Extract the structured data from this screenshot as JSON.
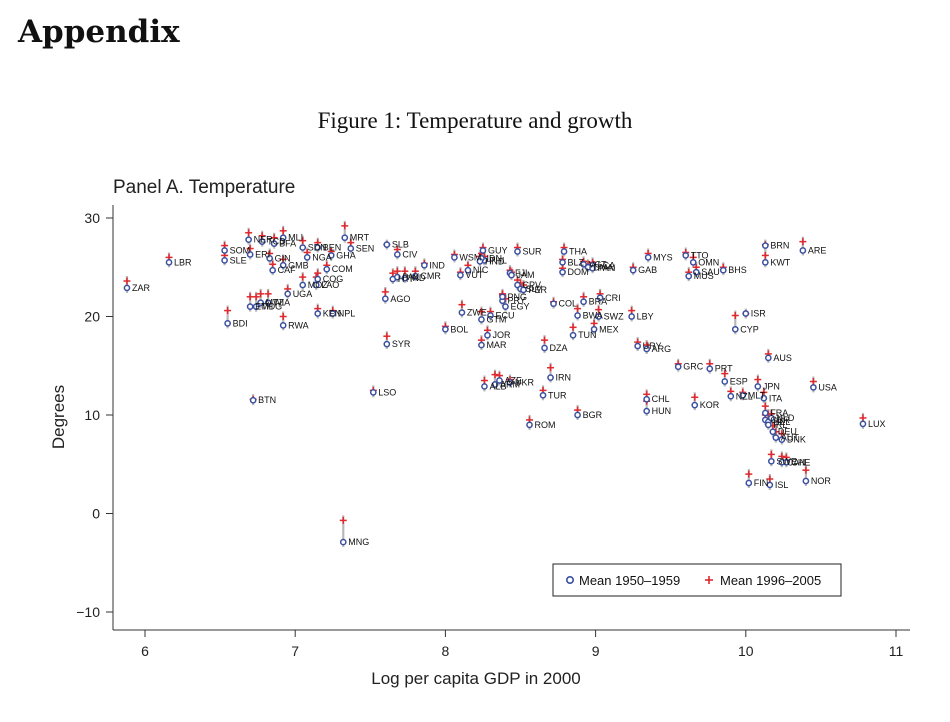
{
  "heading": "Appendix",
  "caption": "Figure 1: Temperature and growth",
  "chart_data": {
    "type": "scatter",
    "title": "Panel A. Temperature",
    "xlabel": "Log per capita GDP in 2000",
    "ylabel": "Degrees",
    "xlim": [
      5.8,
      11.1
    ],
    "ylim": [
      -11.5,
      32
    ],
    "xticks": [
      6,
      7,
      8,
      9,
      10,
      11
    ],
    "yticks": [
      -10,
      0,
      10,
      20,
      30
    ],
    "ytick_labels": [
      "−10",
      "0",
      "10",
      "20",
      "30"
    ],
    "legend": [
      "Mean 1950–1959",
      "Mean 1996–2005"
    ],
    "legend_position": "bottom-right",
    "colors": {
      "early": "#3a4fa0",
      "late": "#e0282d",
      "range": "#b8b8b8"
    },
    "points": [
      {
        "label": "ZAR",
        "x": 5.88,
        "y1950": 22.9,
        "y2000": 23.6
      },
      {
        "label": "LBR",
        "x": 6.16,
        "y1950": 25.5,
        "y2000": 26.0
      },
      {
        "label": "SOM",
        "x": 6.53,
        "y1950": 26.7,
        "y2000": 27.2
      },
      {
        "label": "SLE",
        "x": 6.53,
        "y1950": 25.7,
        "y2000": 26.2
      },
      {
        "label": "BDI",
        "x": 6.55,
        "y1950": 19.3,
        "y2000": 20.6
      },
      {
        "label": "NER",
        "x": 6.69,
        "y1950": 27.8,
        "y2000": 28.5
      },
      {
        "label": "TCD",
        "x": 6.78,
        "y1950": 27.6,
        "y2000": 28.2
      },
      {
        "label": "BFA",
        "x": 6.86,
        "y1950": 27.4,
        "y2000": 28.0
      },
      {
        "label": "ETH",
        "x": 6.7,
        "y1950": 21.0,
        "y2000": 22.0
      },
      {
        "label": "ERI",
        "x": 6.7,
        "y1950": 26.3,
        "y2000": 26.9
      },
      {
        "label": "BTN",
        "x": 6.72,
        "y1950": 11.5,
        "y2000": 11.6
      },
      {
        "label": "MDG",
        "x": 6.74,
        "y1950": 21.0,
        "y2000": 22.0
      },
      {
        "label": "MWI",
        "x": 6.77,
        "y1950": 21.4,
        "y2000": 22.3
      },
      {
        "label": "TZA",
        "x": 6.82,
        "y1950": 21.4,
        "y2000": 22.3
      },
      {
        "label": "GIN",
        "x": 6.83,
        "y1950": 25.9,
        "y2000": 26.4
      },
      {
        "label": "MLI",
        "x": 6.92,
        "y1950": 28.0,
        "y2000": 28.7
      },
      {
        "label": "GMB",
        "x": 6.92,
        "y1950": 25.2,
        "y2000": 25.8
      },
      {
        "label": "CAF",
        "x": 6.85,
        "y1950": 24.7,
        "y2000": 25.3
      },
      {
        "label": "RWA",
        "x": 6.92,
        "y1950": 19.1,
        "y2000": 20.0
      },
      {
        "label": "UGA",
        "x": 6.95,
        "y1950": 22.3,
        "y2000": 22.8
      },
      {
        "label": "SDN",
        "x": 7.05,
        "y1950": 27.0,
        "y2000": 27.7
      },
      {
        "label": "NGA",
        "x": 7.08,
        "y1950": 26.0,
        "y2000": 26.5
      },
      {
        "label": "BEN",
        "x": 7.15,
        "y1950": 27.0,
        "y2000": 27.5
      },
      {
        "label": "MOZ",
        "x": 7.05,
        "y1950": 23.2,
        "y2000": 24.0
      },
      {
        "label": "COG",
        "x": 7.15,
        "y1950": 23.8,
        "y2000": 24.4
      },
      {
        "label": "LAO",
        "x": 7.14,
        "y1950": 23.2,
        "y2000": 24.0
      },
      {
        "label": "KEN",
        "x": 7.15,
        "y1950": 20.3,
        "y2000": 20.8
      },
      {
        "label": "NPL",
        "x": 7.25,
        "y1950": 20.3,
        "y2000": 20.6
      },
      {
        "label": "COM",
        "x": 7.21,
        "y1950": 24.8,
        "y2000": 25.2
      },
      {
        "label": "GHA",
        "x": 7.24,
        "y1950": 26.2,
        "y2000": 26.6
      },
      {
        "label": "MRT",
        "x": 7.33,
        "y1950": 28.0,
        "y2000": 29.2
      },
      {
        "label": "SEN",
        "x": 7.37,
        "y1950": 26.9,
        "y2000": 27.5
      },
      {
        "label": "MNG",
        "x": 7.32,
        "y1950": -2.9,
        "y2000": -0.7
      },
      {
        "label": "LSO",
        "x": 7.52,
        "y1950": 12.3,
        "y2000": 12.5
      },
      {
        "label": "SLB",
        "x": 7.61,
        "y1950": 27.3,
        "y2000": 27.3
      },
      {
        "label": "AGO",
        "x": 7.6,
        "y1950": 21.8,
        "y2000": 22.5
      },
      {
        "label": "SYR",
        "x": 7.61,
        "y1950": 17.2,
        "y2000": 18.0
      },
      {
        "label": "CIV",
        "x": 7.68,
        "y1950": 26.3,
        "y2000": 26.8
      },
      {
        "label": "HTI",
        "x": 7.65,
        "y1950": 23.8,
        "y2000": 24.4
      },
      {
        "label": "PAK",
        "x": 7.68,
        "y1950": 24.0,
        "y2000": 24.6
      },
      {
        "label": "IND",
        "x": 7.73,
        "y1950": 23.9,
        "y2000": 24.6
      },
      {
        "label": "CMR",
        "x": 7.8,
        "y1950": 24.1,
        "y2000": 24.6
      },
      {
        "label": "IND",
        "x": 7.86,
        "y1950": 25.2,
        "y2000": 25.4
      },
      {
        "label": "BOL",
        "x": 8.0,
        "y1950": 18.7,
        "y2000": 19.0
      },
      {
        "label": "WSM",
        "x": 8.06,
        "y1950": 26.0,
        "y2000": 26.3
      },
      {
        "label": "VUT",
        "x": 8.1,
        "y1950": 24.2,
        "y2000": 24.5
      },
      {
        "label": "NIC",
        "x": 8.15,
        "y1950": 24.7,
        "y2000": 25.2
      },
      {
        "label": "ZWE",
        "x": 8.11,
        "y1950": 20.4,
        "y2000": 21.2
      },
      {
        "label": "GUY",
        "x": 8.25,
        "y1950": 26.7,
        "y2000": 27.0
      },
      {
        "label": "PHL",
        "x": 8.26,
        "y1950": 25.7,
        "y2000": 26.1
      },
      {
        "label": "IDN",
        "x": 8.24,
        "y1950": 25.9,
        "y2000": 26.4
      },
      {
        "label": "HND",
        "x": 8.23,
        "y1950": 25.6,
        "y2000": 26.1
      },
      {
        "label": "GTM",
        "x": 8.24,
        "y1950": 19.7,
        "y2000": 20.5
      },
      {
        "label": "MAR",
        "x": 8.24,
        "y1950": 17.1,
        "y2000": 17.6
      },
      {
        "label": "JOR",
        "x": 8.28,
        "y1950": 18.1,
        "y2000": 18.6
      },
      {
        "label": "ALB",
        "x": 8.26,
        "y1950": 12.9,
        "y2000": 13.5
      },
      {
        "label": "ECU",
        "x": 8.3,
        "y1950": 20.1,
        "y2000": 20.5
      },
      {
        "label": "ARM",
        "x": 8.33,
        "y1950": 13.1,
        "y2000": 14.1
      },
      {
        "label": "AZE",
        "x": 8.36,
        "y1950": 13.5,
        "y2000": 14.0
      },
      {
        "label": "PRY",
        "x": 8.38,
        "y1950": 21.6,
        "y2000": 22.2
      },
      {
        "label": "PNG",
        "x": 8.38,
        "y1950": 22.0,
        "y2000": 22.3
      },
      {
        "label": "EGY",
        "x": 8.4,
        "y1950": 21.0,
        "y2000": 21.8
      },
      {
        "label": "SUR",
        "x": 8.48,
        "y1950": 26.6,
        "y2000": 27.0
      },
      {
        "label": "FJI",
        "x": 8.43,
        "y1950": 24.4,
        "y2000": 24.7
      },
      {
        "label": "JAM",
        "x": 8.44,
        "y1950": 24.2,
        "y2000": 24.5
      },
      {
        "label": "CPV",
        "x": 8.48,
        "y1950": 23.2,
        "y2000": 23.7
      },
      {
        "label": "SLV",
        "x": 8.5,
        "y1950": 22.8,
        "y2000": 23.4
      },
      {
        "label": "PER",
        "x": 8.52,
        "y1950": 22.7,
        "y2000": 23.2
      },
      {
        "label": "UKR",
        "x": 8.43,
        "y1950": 13.3,
        "y2000": 13.6
      },
      {
        "label": "TUR",
        "x": 8.65,
        "y1950": 12.0,
        "y2000": 12.5
      },
      {
        "label": "ROM",
        "x": 8.56,
        "y1950": 9.0,
        "y2000": 9.5
      },
      {
        "label": "DZA",
        "x": 8.66,
        "y1950": 16.8,
        "y2000": 17.6
      },
      {
        "label": "IRN",
        "x": 8.7,
        "y1950": 13.8,
        "y2000": 14.8
      },
      {
        "label": "COL",
        "x": 8.72,
        "y1950": 21.3,
        "y2000": 21.5
      },
      {
        "label": "BLZ",
        "x": 8.78,
        "y1950": 25.5,
        "y2000": 25.8
      },
      {
        "label": "DOM",
        "x": 8.78,
        "y1950": 24.5,
        "y2000": 24.9
      },
      {
        "label": "THA",
        "x": 8.79,
        "y1950": 26.6,
        "y2000": 27.0
      },
      {
        "label": "BGR",
        "x": 8.88,
        "y1950": 10.0,
        "y2000": 10.5
      },
      {
        "label": "BRA",
        "x": 8.92,
        "y1950": 21.5,
        "y2000": 22.0
      },
      {
        "label": "BWA",
        "x": 8.88,
        "y1950": 20.1,
        "y2000": 20.8
      },
      {
        "label": "TUN",
        "x": 8.85,
        "y1950": 18.1,
        "y2000": 18.9
      },
      {
        "label": "VCT",
        "x": 8.92,
        "y1950": 25.3,
        "y2000": 25.6
      },
      {
        "label": "DMA",
        "x": 8.95,
        "y1950": 25.0,
        "y2000": 25.3
      },
      {
        "label": "LCA",
        "x": 8.98,
        "y1950": 25.2,
        "y2000": 25.5
      },
      {
        "label": "PAN",
        "x": 8.98,
        "y1950": 24.9,
        "y2000": 25.2
      },
      {
        "label": "MEX",
        "x": 8.99,
        "y1950": 18.7,
        "y2000": 19.3
      },
      {
        "label": "CRI",
        "x": 9.03,
        "y1950": 21.9,
        "y2000": 22.3
      },
      {
        "label": "SWZ",
        "x": 9.02,
        "y1950": 20.0,
        "y2000": 20.7
      },
      {
        "label": "GAB",
        "x": 9.25,
        "y1950": 24.7,
        "y2000": 25.0
      },
      {
        "label": "LBY",
        "x": 9.24,
        "y1950": 20.0,
        "y2000": 20.6
      },
      {
        "label": "URY",
        "x": 9.28,
        "y1950": 17.0,
        "y2000": 17.4
      },
      {
        "label": "ARG",
        "x": 9.34,
        "y1950": 16.7,
        "y2000": 17.1
      },
      {
        "label": "MYS",
        "x": 9.35,
        "y1950": 26.0,
        "y2000": 26.4
      },
      {
        "label": "CHL",
        "x": 9.34,
        "y1950": 11.6,
        "y2000": 12.1
      },
      {
        "label": "HUN",
        "x": 9.34,
        "y1950": 10.4,
        "y2000": 11.4
      },
      {
        "label": "GRC",
        "x": 9.55,
        "y1950": 14.9,
        "y2000": 15.2
      },
      {
        "label": "TTO",
        "x": 9.6,
        "y1950": 26.2,
        "y2000": 26.5
      },
      {
        "label": "OMN",
        "x": 9.65,
        "y1950": 25.5,
        "y2000": 26.0
      },
      {
        "label": "MUS",
        "x": 9.62,
        "y1950": 24.1,
        "y2000": 24.5
      },
      {
        "label": "SAU",
        "x": 9.67,
        "y1950": 24.5,
        "y2000": 25.0
      },
      {
        "label": "BHS",
        "x": 9.85,
        "y1950": 24.7,
        "y2000": 25.0
      },
      {
        "label": "KOR",
        "x": 9.66,
        "y1950": 11.0,
        "y2000": 11.8
      },
      {
        "label": "PRT",
        "x": 9.76,
        "y1950": 14.7,
        "y2000": 15.2
      },
      {
        "label": "ESP",
        "x": 9.86,
        "y1950": 13.4,
        "y2000": 14.2
      },
      {
        "label": "NZL",
        "x": 9.9,
        "y1950": 11.9,
        "y2000": 12.4
      },
      {
        "label": "ISR",
        "x": 10.0,
        "y1950": 20.3,
        "y2000": 20.3
      },
      {
        "label": "CYP",
        "x": 9.93,
        "y1950": 18.7,
        "y2000": 20.1
      },
      {
        "label": "MLT",
        "x": 9.98,
        "y1950": 12.0,
        "y2000": 12.3
      },
      {
        "label": "JPN",
        "x": 10.08,
        "y1950": 12.9,
        "y2000": 13.6
      },
      {
        "label": "BRN",
        "x": 10.13,
        "y1950": 27.2,
        "y2000": 27.3
      },
      {
        "label": "KWT",
        "x": 10.13,
        "y1950": 25.5,
        "y2000": 26.2
      },
      {
        "label": "AUS",
        "x": 10.15,
        "y1950": 15.8,
        "y2000": 16.2
      },
      {
        "label": "ITA",
        "x": 10.12,
        "y1950": 11.7,
        "y2000": 12.3
      },
      {
        "label": "FRA",
        "x": 10.13,
        "y1950": 10.2,
        "y2000": 10.9
      },
      {
        "label": "GBR",
        "x": 10.13,
        "y1950": 9.5,
        "y2000": 10.0
      },
      {
        "label": "BEL",
        "x": 10.15,
        "y1950": 9.3,
        "y2000": 10.1
      },
      {
        "label": "IRL",
        "x": 10.15,
        "y1950": 9.0,
        "y2000": 9.5
      },
      {
        "label": "NLD",
        "x": 10.17,
        "y1950": 9.7,
        "y2000": 10.1
      },
      {
        "label": "DEU",
        "x": 10.18,
        "y1950": 8.3,
        "y2000": 8.9
      },
      {
        "label": "AUT",
        "x": 10.2,
        "y1950": 7.7,
        "y2000": 8.3
      },
      {
        "label": "DNK",
        "x": 10.24,
        "y1950": 7.5,
        "y2000": 8.1
      },
      {
        "label": "ISL",
        "x": 10.16,
        "y1950": 2.9,
        "y2000": 3.5
      },
      {
        "label": "FIN",
        "x": 10.02,
        "y1950": 3.1,
        "y2000": 4.0
      },
      {
        "label": "SWE",
        "x": 10.17,
        "y1950": 5.3,
        "y2000": 6.0
      },
      {
        "label": "CAN",
        "x": 10.24,
        "y1950": 5.2,
        "y2000": 5.8
      },
      {
        "label": "CHE",
        "x": 10.27,
        "y1950": 5.2,
        "y2000": 5.7
      },
      {
        "label": "NOR",
        "x": 10.4,
        "y1950": 3.3,
        "y2000": 4.4
      },
      {
        "label": "ARE",
        "x": 10.38,
        "y1950": 26.7,
        "y2000": 27.6
      },
      {
        "label": "USA",
        "x": 10.45,
        "y1950": 12.8,
        "y2000": 13.4
      },
      {
        "label": "LUX",
        "x": 10.78,
        "y1950": 9.1,
        "y2000": 9.7
      }
    ]
  }
}
